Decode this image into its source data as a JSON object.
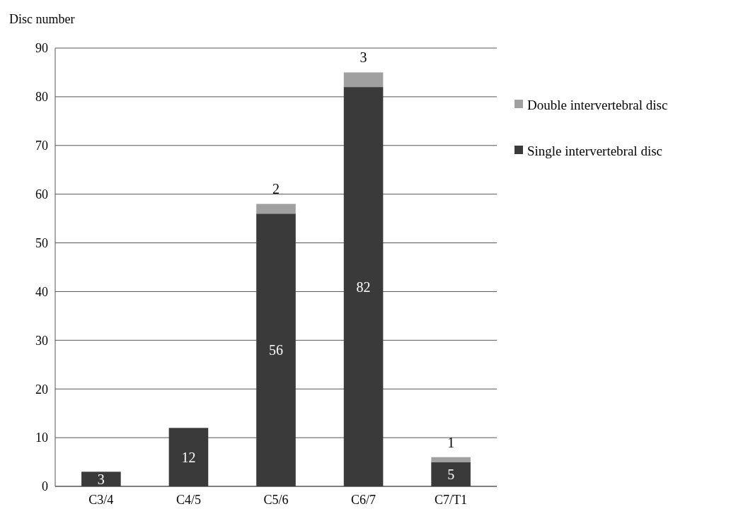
{
  "chart_data": {
    "type": "bar",
    "ylabel": "Disc number",
    "categories": [
      "C3/4",
      "C4/5",
      "C5/6",
      "C6/7",
      "C7/T1"
    ],
    "series": [
      {
        "name": "Single intervertebral disc",
        "color": "#3a3a3a",
        "values": [
          3,
          12,
          56,
          82,
          5
        ]
      },
      {
        "name": "Double intervertebral disc",
        "color": "#a0a0a0",
        "values": [
          null,
          null,
          2,
          3,
          1
        ]
      }
    ],
    "stacked": true,
    "data_labels": true,
    "ylim": [
      0,
      90
    ],
    "yticks": [
      0,
      10,
      20,
      30,
      40,
      50,
      60,
      70,
      80,
      90
    ],
    "grid": "y",
    "legend": "right"
  }
}
